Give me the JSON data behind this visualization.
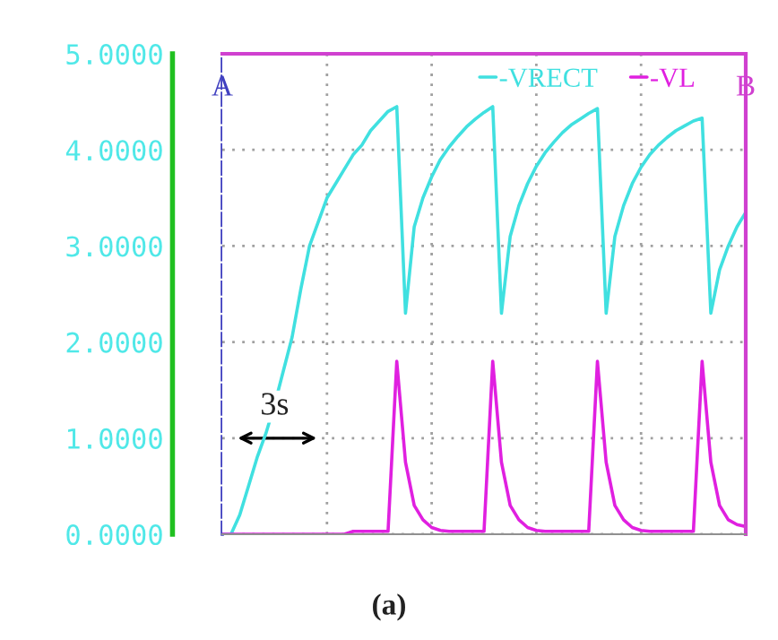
{
  "chart_data": {
    "type": "line",
    "categories": [
      null,
      null,
      null,
      null,
      null,
      null,
      null,
      null,
      null,
      null,
      null,
      null,
      null,
      null,
      null,
      null,
      null,
      null,
      null,
      null,
      null,
      null,
      null,
      null,
      null,
      null,
      null,
      null,
      null,
      null,
      null,
      null,
      null,
      null,
      null,
      null,
      null,
      null,
      null,
      null,
      null,
      null,
      null,
      null,
      null,
      null,
      null,
      null,
      null,
      null,
      null,
      null,
      null,
      null,
      null,
      null,
      null,
      null,
      null,
      null,
      null
    ],
    "series": [
      {
        "name": "-VRECT",
        "color": "#40e0e0",
        "values": [
          0,
          0,
          0.2,
          0.5,
          0.8,
          1.05,
          1.35,
          1.7,
          2.05,
          2.55,
          3.0,
          3.25,
          3.5,
          3.65,
          3.8,
          3.95,
          4.05,
          4.2,
          4.3,
          4.4,
          4.45,
          2.3,
          3.2,
          3.5,
          3.72,
          3.9,
          4.03,
          4.14,
          4.24,
          4.32,
          4.39,
          4.45,
          2.3,
          3.1,
          3.42,
          3.65,
          3.83,
          3.97,
          4.08,
          4.18,
          4.26,
          4.32,
          4.38,
          4.43,
          2.3,
          3.1,
          3.42,
          3.65,
          3.82,
          3.95,
          4.05,
          4.13,
          4.2,
          4.25,
          4.3,
          4.33,
          2.3,
          2.75,
          3.0,
          3.2,
          3.35
        ]
      },
      {
        "name": "-VL",
        "color": "#e020e0",
        "values": [
          0,
          0,
          0,
          0,
          0,
          0,
          0,
          0,
          0,
          0,
          0,
          0,
          0,
          0,
          0,
          0.03,
          0.03,
          0.03,
          0.03,
          0.03,
          1.8,
          0.75,
          0.3,
          0.15,
          0.07,
          0.04,
          0.03,
          0.03,
          0.03,
          0.03,
          0.03,
          1.8,
          0.75,
          0.3,
          0.15,
          0.07,
          0.04,
          0.03,
          0.03,
          0.03,
          0.03,
          0.03,
          0.03,
          1.8,
          0.75,
          0.3,
          0.15,
          0.07,
          0.04,
          0.03,
          0.03,
          0.03,
          0.03,
          0.03,
          0.03,
          1.8,
          0.75,
          0.3,
          0.15,
          0.1,
          0.08
        ]
      }
    ],
    "ylim": [
      0,
      5
    ],
    "yticks": [
      {
        "value": 0,
        "label": "0.0000"
      },
      {
        "value": 1,
        "label": "1.0000"
      },
      {
        "value": 2,
        "label": "2.0000"
      },
      {
        "value": 3,
        "label": "3.0000"
      },
      {
        "value": 4,
        "label": "4.0000"
      },
      {
        "value": 5,
        "label": "5.0000"
      }
    ],
    "tick_labels": "y",
    "grid": true,
    "legend": "top right",
    "annotations": [
      "A",
      "B",
      "3s",
      "(a)"
    ]
  }
}
